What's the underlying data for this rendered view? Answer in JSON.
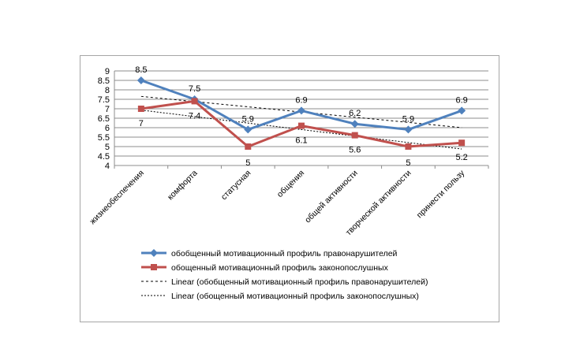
{
  "chart_data": {
    "type": "line",
    "categories": [
      "жизнеобеспечения",
      "комфорта",
      "статусная",
      "общения",
      "общей активности",
      "творческой активности",
      "принести пользу"
    ],
    "series": [
      {
        "name": "обобщенный мотивационный профиль правонарушителей",
        "values": [
          8.5,
          7.5,
          5.9,
          6.9,
          6.2,
          5.9,
          6.9
        ],
        "color": "#4f81bd",
        "marker": "diamond",
        "labels": [
          "8.5",
          "7.5",
          "5.9",
          "6.9",
          "6.2",
          "5.9",
          "6.9"
        ]
      },
      {
        "name": "обощенный мотивационный профиль законопослушных",
        "values": [
          7,
          7.4,
          5,
          6.1,
          5.6,
          5,
          5.2
        ],
        "color": "#c0504d",
        "marker": "square",
        "labels": [
          "7",
          "7.4",
          "5",
          "6.1",
          "5.6",
          "5",
          "5.2"
        ]
      }
    ],
    "trendlines": [
      {
        "name": "Linear (обобщенный мотивационный профиль правонарушителей)",
        "dash": "3,3"
      },
      {
        "name": "Linear (обощенный мотивационный профиль законопослушных)",
        "dash": "2,2"
      }
    ],
    "ylim": [
      4,
      9
    ],
    "yticks": [
      "9",
      "8.5",
      "8",
      "7.5",
      "7",
      "6.5",
      "6",
      "5.5",
      "5",
      "4.5",
      "4"
    ],
    "grid": true,
    "legend_position": "bottom"
  }
}
